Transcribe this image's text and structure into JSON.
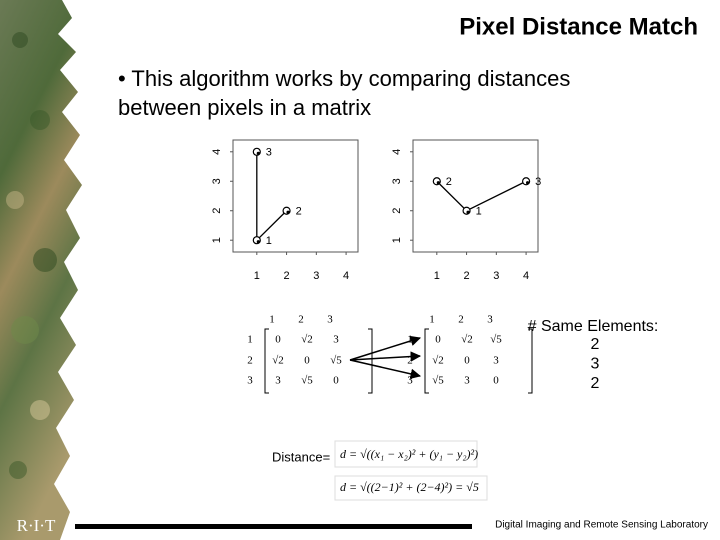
{
  "title": "Pixel Distance Match",
  "bullet": "• This algorithm works by comparing distances between pixels in a matrix",
  "plots": [
    {
      "xlim": [
        0.2,
        4.4
      ],
      "ylim": [
        0.6,
        4.4
      ],
      "xticks": [
        1,
        2,
        3,
        4
      ],
      "yticks": [
        1,
        2,
        3,
        4
      ],
      "points": [
        {
          "label": "3",
          "x": 1,
          "y": 4
        },
        {
          "label": "1",
          "x": 1,
          "y": 1
        },
        {
          "label": "2",
          "x": 2,
          "y": 2
        }
      ]
    },
    {
      "xlim": [
        0.2,
        4.4
      ],
      "ylim": [
        0.6,
        4.4
      ],
      "xticks": [
        1,
        2,
        3,
        4
      ],
      "yticks": [
        1,
        2,
        3,
        4
      ],
      "points": [
        {
          "label": "2",
          "x": 1,
          "y": 3
        },
        {
          "label": "1",
          "x": 2,
          "y": 2
        },
        {
          "label": "3",
          "x": 4,
          "y": 3
        }
      ]
    }
  ],
  "matrices": [
    {
      "columns": [
        "1",
        "2",
        "3"
      ],
      "rows": [
        "1",
        "2",
        "3"
      ],
      "cells": [
        [
          "0",
          "√2",
          "3"
        ],
        [
          "√2",
          "0",
          "√5"
        ],
        [
          "3",
          "√5",
          "0"
        ]
      ]
    },
    {
      "columns": [
        "1",
        "2",
        "3"
      ],
      "rows": [
        "1",
        "2",
        "3"
      ],
      "cells": [
        [
          "0",
          "√2",
          "√5"
        ],
        [
          "√2",
          "0",
          "3"
        ],
        [
          "√5",
          "3",
          "0"
        ]
      ]
    }
  ],
  "same_elements": {
    "label": "# Same Elements:",
    "values": [
      "2",
      "3",
      "2"
    ]
  },
  "distance": {
    "label": "Distance=",
    "formula": "d = √((x₁ − x₂)² + (y₁ − y₂)²)",
    "example": "d = √((2−1)² + (2−4)²) = √5"
  },
  "footer": "Digital Imaging and Remote Sensing Laboratory",
  "logo": "R·I·T"
}
